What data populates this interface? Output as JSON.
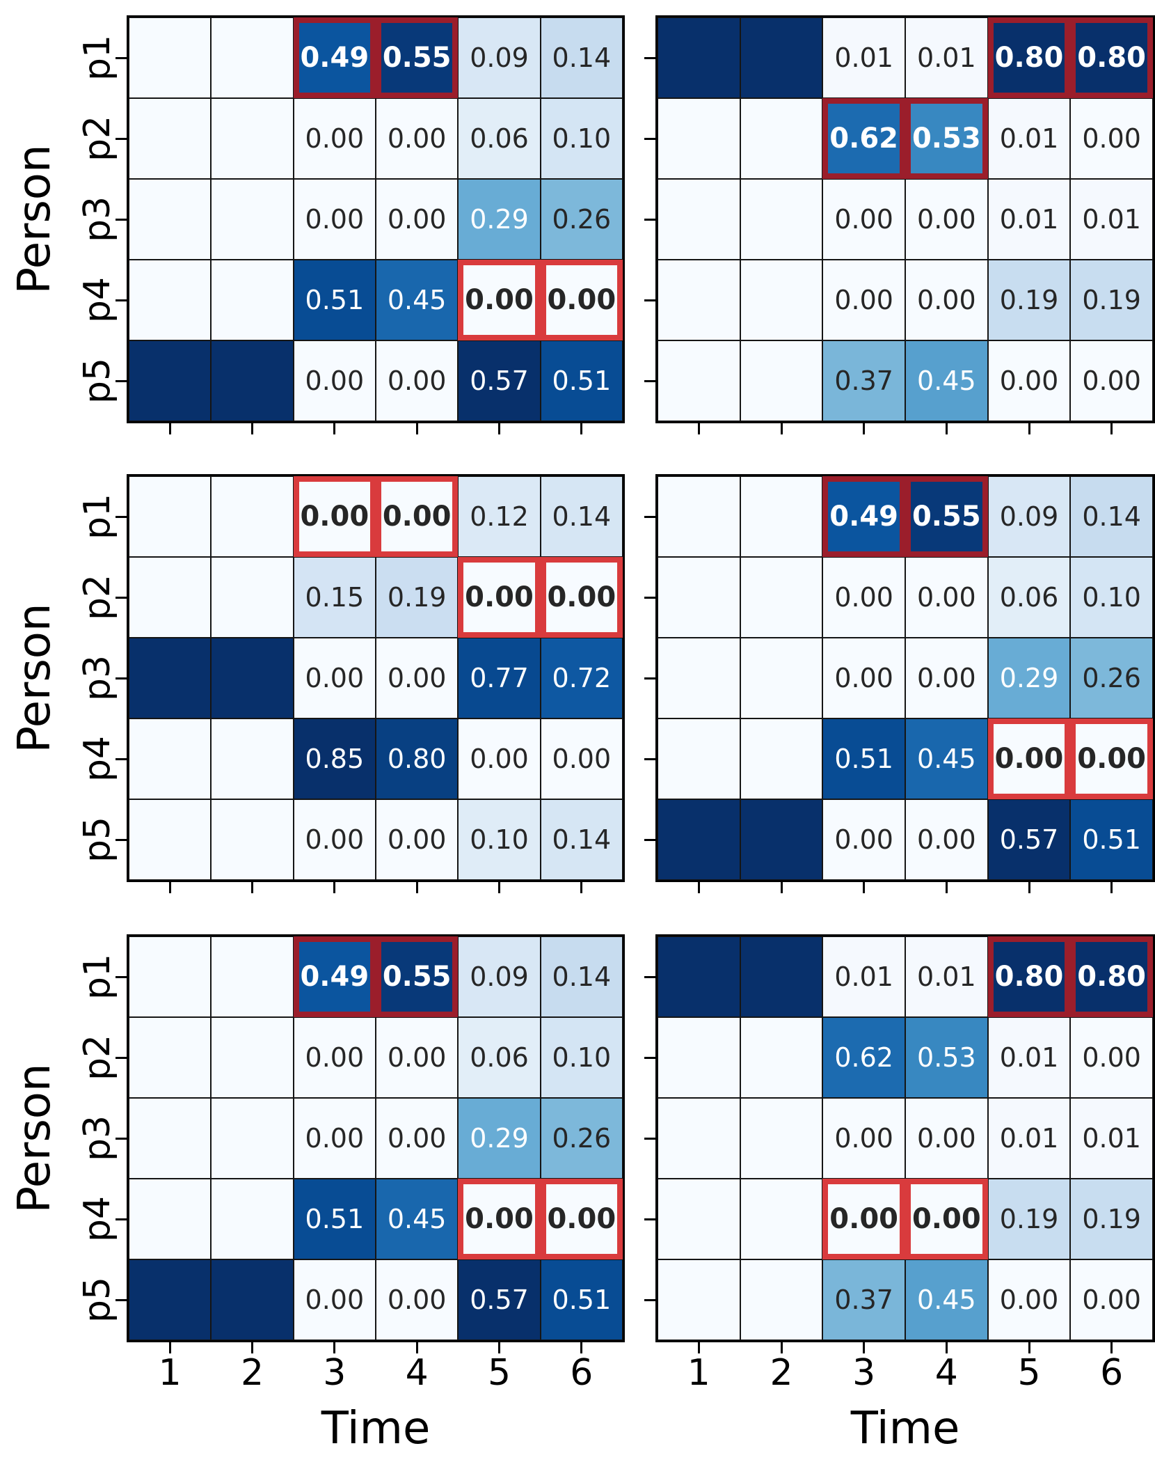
{
  "chart_data": {
    "type": "heatmap",
    "title": "",
    "xlabel": "Time",
    "ylabel": "Person",
    "x_ticks": [
      "1",
      "2",
      "3",
      "4",
      "5",
      "6"
    ],
    "y_ticks": [
      "p1",
      "p2",
      "p3",
      "p4",
      "p5"
    ],
    "colormap": "Blues",
    "grid_layout": {
      "rows": 3,
      "cols": 2
    },
    "legend": "none",
    "annotation_format": "2-decimal",
    "colors": {
      "highlight_darkred": "#9b1e2b",
      "highlight_red": "#d93b3d",
      "masked_dark": "#08306b",
      "masked_light": "#f7fbff",
      "dark_text": "#262626",
      "light_text": "#ffffff",
      "gridline": "#151515",
      "spine": "#000000",
      "background": "#ffffff"
    },
    "subplots": [
      {
        "name": "row1-col1",
        "vmax": 0.57,
        "values": [
          [
            null,
            null,
            0.49,
            0.55,
            0.09,
            0.14
          ],
          [
            null,
            null,
            0.0,
            0.0,
            0.06,
            0.1
          ],
          [
            null,
            null,
            0.0,
            0.0,
            0.29,
            0.26
          ],
          [
            null,
            null,
            0.51,
            0.45,
            0.0,
            0.0
          ],
          [
            null,
            null,
            0.0,
            0.0,
            0.57,
            0.51
          ]
        ],
        "masked_dark_cells": [
          [
            4,
            0
          ],
          [
            4,
            1
          ]
        ],
        "highlights_darkred": [
          [
            0,
            2
          ],
          [
            0,
            3
          ]
        ],
        "highlights_red": [
          [
            3,
            4
          ],
          [
            3,
            5
          ]
        ]
      },
      {
        "name": "row1-col2",
        "vmax": 0.8,
        "values": [
          [
            null,
            null,
            0.01,
            0.01,
            0.8,
            0.8
          ],
          [
            null,
            null,
            0.62,
            0.53,
            0.01,
            0.0
          ],
          [
            null,
            null,
            0.0,
            0.0,
            0.01,
            0.01
          ],
          [
            null,
            null,
            0.0,
            0.0,
            0.19,
            0.19
          ],
          [
            null,
            null,
            0.37,
            0.45,
            0.0,
            0.0
          ]
        ],
        "masked_dark_cells": [
          [
            0,
            0
          ],
          [
            0,
            1
          ]
        ],
        "highlights_darkred": [
          [
            0,
            4
          ],
          [
            0,
            5
          ],
          [
            1,
            2
          ],
          [
            1,
            3
          ]
        ],
        "highlights_red": []
      },
      {
        "name": "row2-col1",
        "vmax": 0.85,
        "values": [
          [
            null,
            null,
            0.0,
            0.0,
            0.12,
            0.14
          ],
          [
            null,
            null,
            0.15,
            0.19,
            0.0,
            0.0
          ],
          [
            null,
            null,
            0.0,
            0.0,
            0.77,
            0.72
          ],
          [
            null,
            null,
            0.85,
            0.8,
            0.0,
            0.0
          ],
          [
            null,
            null,
            0.0,
            0.0,
            0.1,
            0.14
          ]
        ],
        "masked_dark_cells": [
          [
            2,
            0
          ],
          [
            2,
            1
          ]
        ],
        "highlights_darkred": [],
        "highlights_red": [
          [
            0,
            2
          ],
          [
            0,
            3
          ],
          [
            1,
            4
          ],
          [
            1,
            5
          ]
        ]
      },
      {
        "name": "row2-col2",
        "vmax": 0.57,
        "values": [
          [
            null,
            null,
            0.49,
            0.55,
            0.09,
            0.14
          ],
          [
            null,
            null,
            0.0,
            0.0,
            0.06,
            0.1
          ],
          [
            null,
            null,
            0.0,
            0.0,
            0.29,
            0.26
          ],
          [
            null,
            null,
            0.51,
            0.45,
            0.0,
            0.0
          ],
          [
            null,
            null,
            0.0,
            0.0,
            0.57,
            0.51
          ]
        ],
        "masked_dark_cells": [
          [
            4,
            0
          ],
          [
            4,
            1
          ]
        ],
        "highlights_darkred": [
          [
            0,
            2
          ],
          [
            0,
            3
          ]
        ],
        "highlights_red": [
          [
            3,
            4
          ],
          [
            3,
            5
          ]
        ]
      },
      {
        "name": "row3-col1",
        "vmax": 0.57,
        "values": [
          [
            null,
            null,
            0.49,
            0.55,
            0.09,
            0.14
          ],
          [
            null,
            null,
            0.0,
            0.0,
            0.06,
            0.1
          ],
          [
            null,
            null,
            0.0,
            0.0,
            0.29,
            0.26
          ],
          [
            null,
            null,
            0.51,
            0.45,
            0.0,
            0.0
          ],
          [
            null,
            null,
            0.0,
            0.0,
            0.57,
            0.51
          ]
        ],
        "masked_dark_cells": [
          [
            4,
            0
          ],
          [
            4,
            1
          ]
        ],
        "highlights_darkred": [
          [
            0,
            2
          ],
          [
            0,
            3
          ]
        ],
        "highlights_red": [
          [
            3,
            4
          ],
          [
            3,
            5
          ]
        ]
      },
      {
        "name": "row3-col2",
        "vmax": 0.8,
        "values": [
          [
            null,
            null,
            0.01,
            0.01,
            0.8,
            0.8
          ],
          [
            null,
            null,
            0.62,
            0.53,
            0.01,
            0.0
          ],
          [
            null,
            null,
            0.0,
            0.0,
            0.01,
            0.01
          ],
          [
            null,
            null,
            0.0,
            0.0,
            0.19,
            0.19
          ],
          [
            null,
            null,
            0.37,
            0.45,
            0.0,
            0.0
          ]
        ],
        "masked_dark_cells": [
          [
            0,
            0
          ],
          [
            0,
            1
          ]
        ],
        "highlights_darkred": [
          [
            0,
            4
          ],
          [
            0,
            5
          ]
        ],
        "highlights_red": [
          [
            3,
            2
          ],
          [
            3,
            3
          ]
        ]
      }
    ]
  }
}
